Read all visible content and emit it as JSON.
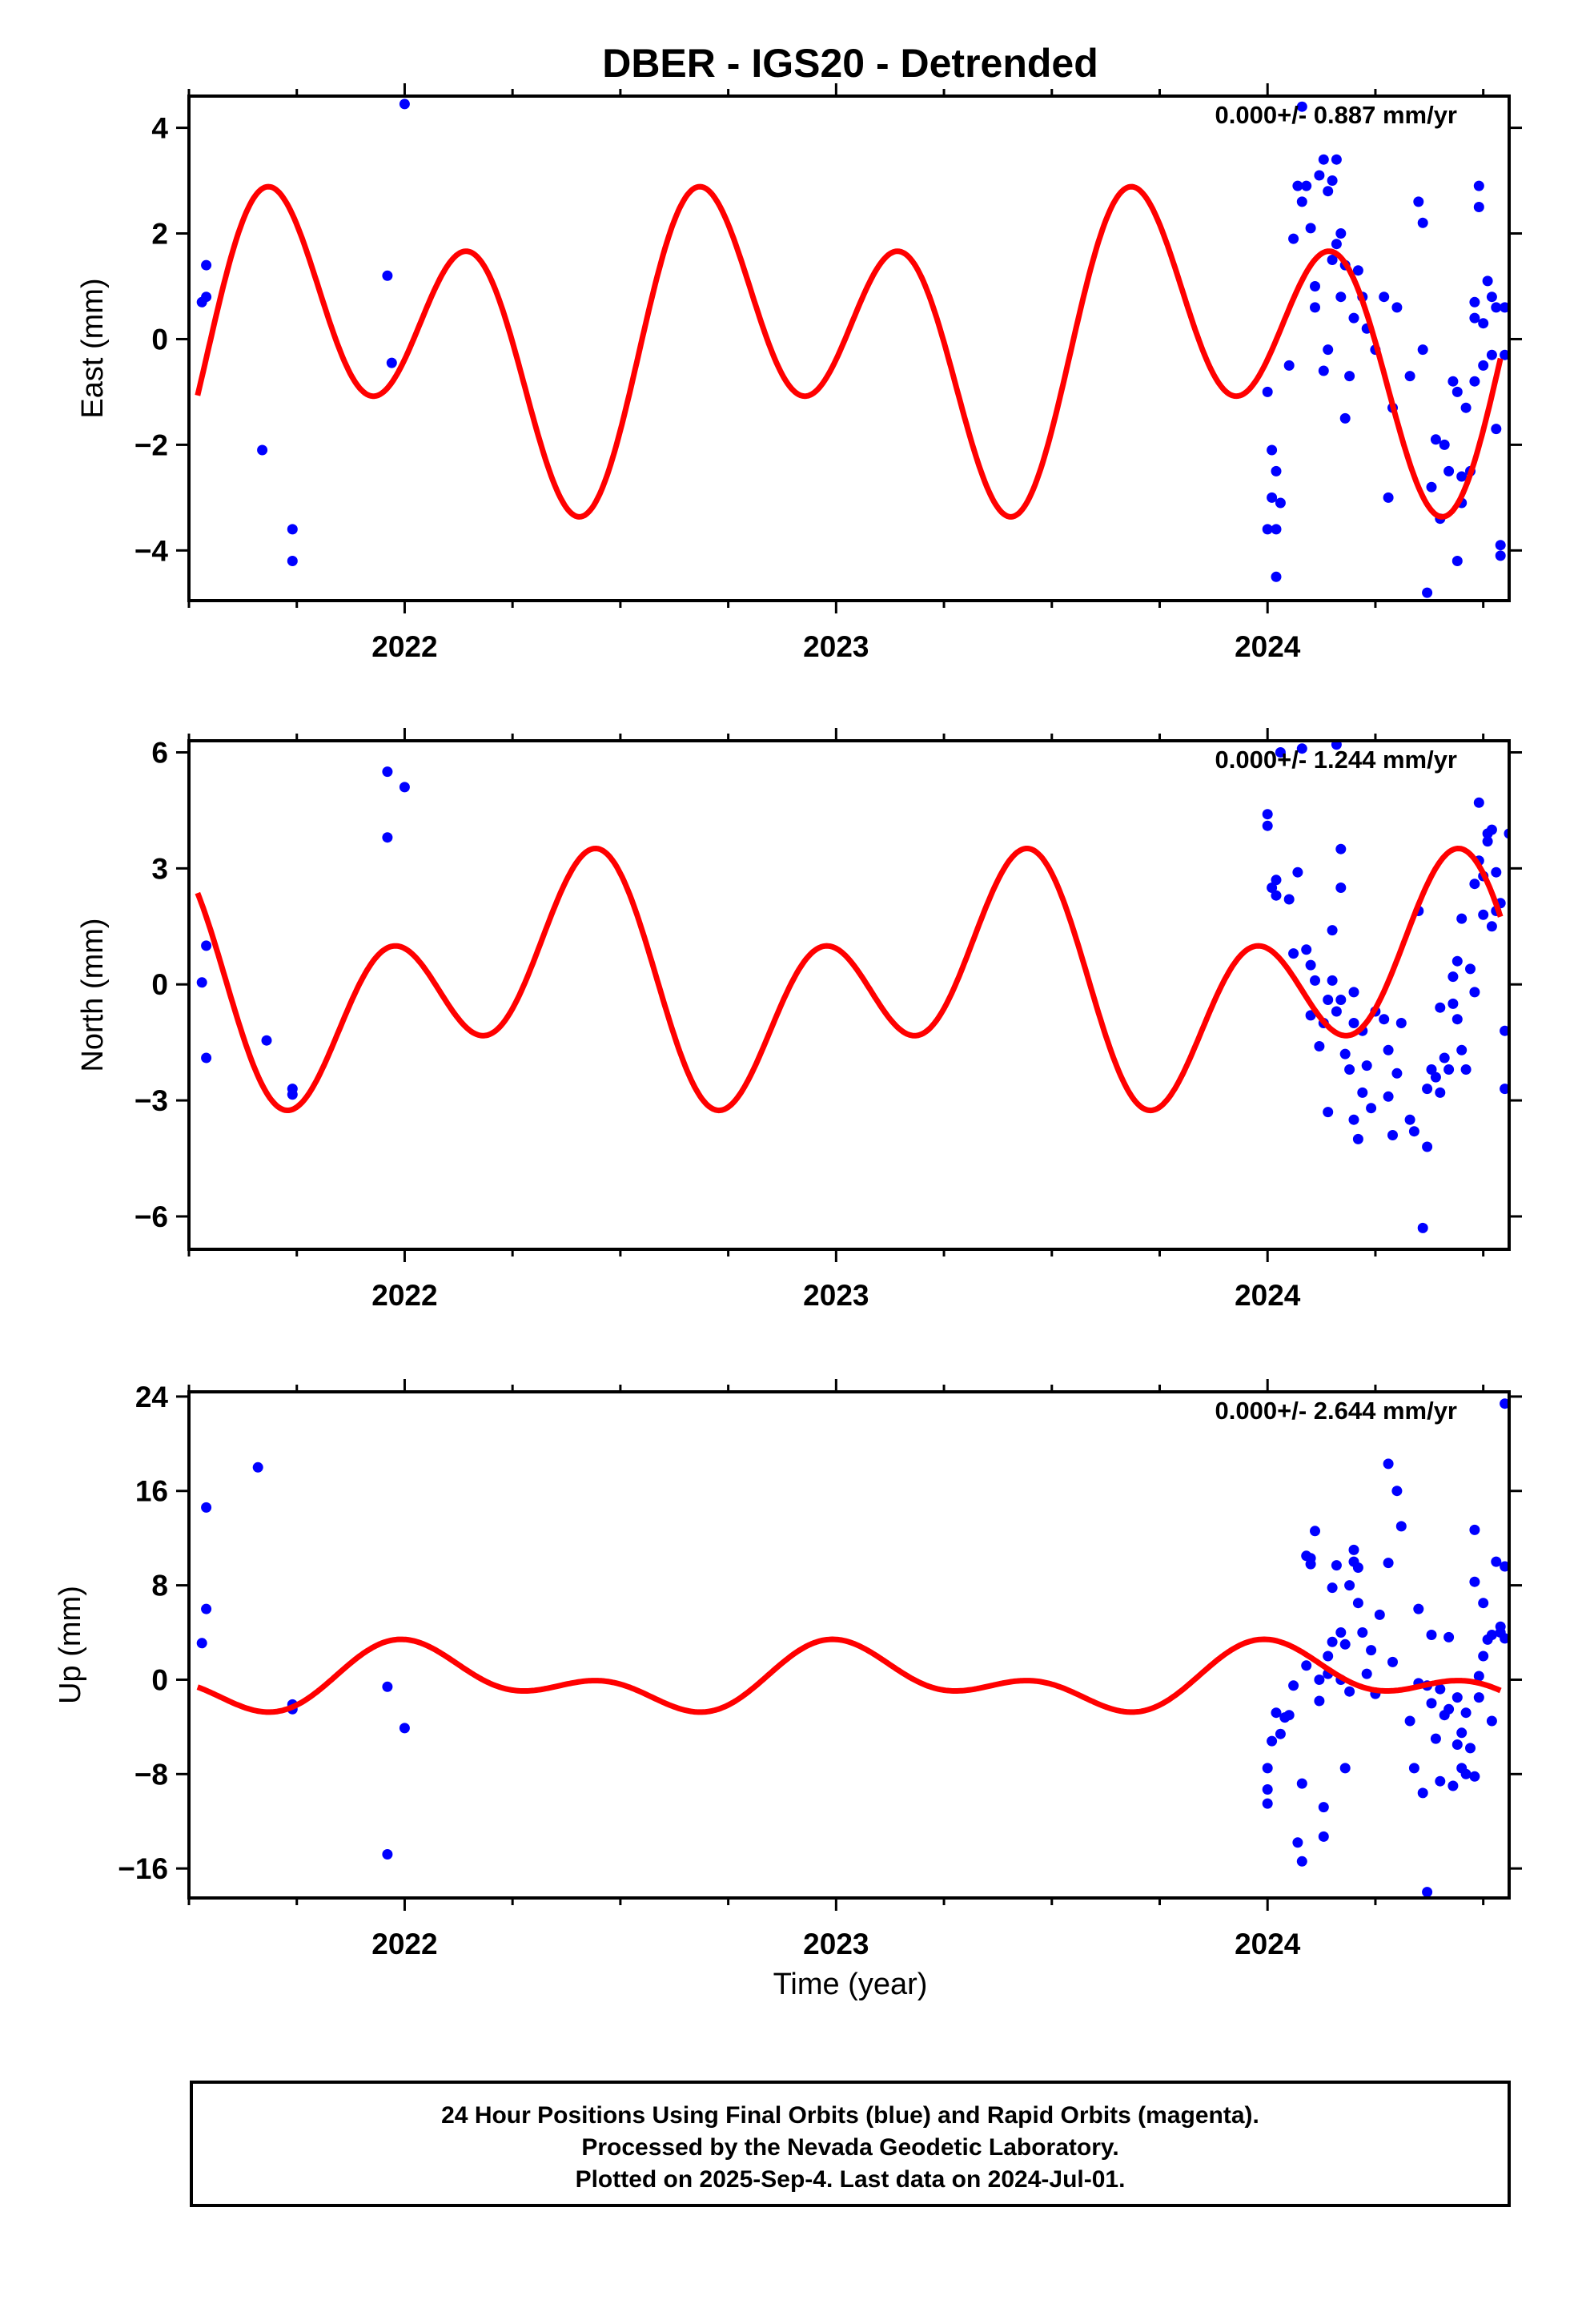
{
  "title": "DBER - IGS20 - Detrended",
  "xlabel": "Time (year)",
  "colors": {
    "points": "#0000ff",
    "fit": "#ff0000",
    "frame": "#000000"
  },
  "footer": {
    "line1": "24 Hour Positions Using Final Orbits (blue) and Rapid Orbits (magenta).",
    "line2": "Processed by the Nevada Geodetic Laboratory.",
    "line3": "Plotted on 2025-Sep-4. Last data on 2024-Jul-01."
  },
  "chart_data": [
    {
      "type": "scatter",
      "ylabel": "East (mm)",
      "rate_label": "0.000+/- 0.887 mm/yr",
      "xlim": [
        2021.5,
        2024.56
      ],
      "ylim": [
        -4.95,
        4.6
      ],
      "xticks": [
        "2022",
        "2023",
        "2024"
      ],
      "yticks": [
        "4",
        "2",
        "0",
        "−2",
        "−4"
      ],
      "ytick_values": [
        4,
        2,
        0,
        -2,
        -4
      ],
      "fit": {
        "a1": 1.3,
        "p1": 2.6,
        "a2": 2.2,
        "p2": -0.5
      },
      "points": [
        [
          2021.53,
          0.7
        ],
        [
          2021.54,
          1.4
        ],
        [
          2021.54,
          0.8
        ],
        [
          2021.67,
          -2.1
        ],
        [
          2021.74,
          -3.6
        ],
        [
          2021.74,
          -4.2
        ],
        [
          2021.96,
          1.2
        ],
        [
          2021.97,
          -0.45
        ],
        [
          2022.0,
          4.45
        ],
        [
          2024.0,
          -1.0
        ],
        [
          2024.0,
          -3.6
        ],
        [
          2024.01,
          -2.1
        ],
        [
          2024.01,
          -3.0
        ],
        [
          2024.02,
          -4.5
        ],
        [
          2024.02,
          -3.6
        ],
        [
          2024.03,
          -3.1
        ],
        [
          2024.02,
          -2.5
        ],
        [
          2024.05,
          -0.5
        ],
        [
          2024.06,
          1.9
        ],
        [
          2024.07,
          2.9
        ],
        [
          2024.08,
          2.6
        ],
        [
          2024.08,
          4.4
        ],
        [
          2024.09,
          2.9
        ],
        [
          2024.1,
          2.1
        ],
        [
          2024.11,
          1.0
        ],
        [
          2024.11,
          0.6
        ],
        [
          2024.12,
          3.1
        ],
        [
          2024.13,
          3.4
        ],
        [
          2024.13,
          -0.6
        ],
        [
          2024.14,
          -0.2
        ],
        [
          2024.14,
          2.8
        ],
        [
          2024.15,
          3.0
        ],
        [
          2024.15,
          1.5
        ],
        [
          2024.16,
          3.4
        ],
        [
          2024.16,
          1.8
        ],
        [
          2024.17,
          2.0
        ],
        [
          2024.17,
          0.8
        ],
        [
          2024.18,
          -1.5
        ],
        [
          2024.18,
          1.4
        ],
        [
          2024.19,
          -0.7
        ],
        [
          2024.2,
          0.4
        ],
        [
          2024.21,
          1.3
        ],
        [
          2024.22,
          0.8
        ],
        [
          2024.23,
          0.2
        ],
        [
          2024.25,
          -0.2
        ],
        [
          2024.27,
          0.8
        ],
        [
          2024.28,
          -3.0
        ],
        [
          2024.29,
          -1.3
        ],
        [
          2024.3,
          0.6
        ],
        [
          2024.33,
          -0.7
        ],
        [
          2024.35,
          2.6
        ],
        [
          2024.36,
          2.2
        ],
        [
          2024.36,
          -0.2
        ],
        [
          2024.37,
          -4.8
        ],
        [
          2024.38,
          -2.8
        ],
        [
          2024.39,
          -1.9
        ],
        [
          2024.4,
          -3.4
        ],
        [
          2024.41,
          -2.0
        ],
        [
          2024.42,
          -2.5
        ],
        [
          2024.43,
          -0.8
        ],
        [
          2024.44,
          -4.2
        ],
        [
          2024.44,
          -1.0
        ],
        [
          2024.45,
          -3.1
        ],
        [
          2024.45,
          -2.6
        ],
        [
          2024.46,
          -1.3
        ],
        [
          2024.47,
          -2.5
        ],
        [
          2024.48,
          0.7
        ],
        [
          2024.48,
          -0.8
        ],
        [
          2024.48,
          0.4
        ],
        [
          2024.49,
          2.5
        ],
        [
          2024.49,
          2.9
        ],
        [
          2024.5,
          -0.5
        ],
        [
          2024.5,
          0.3
        ],
        [
          2024.51,
          1.1
        ],
        [
          2024.52,
          0.8
        ],
        [
          2024.52,
          -0.3
        ],
        [
          2024.53,
          -1.7
        ],
        [
          2024.53,
          0.6
        ],
        [
          2024.54,
          -3.9
        ],
        [
          2024.54,
          -4.1
        ],
        [
          2024.55,
          0.6
        ],
        [
          2024.55,
          -0.3
        ]
      ]
    },
    {
      "type": "scatter",
      "ylabel": "North (mm)",
      "rate_label": "0.000+/- 1.244 mm/yr",
      "xlim": [
        2021.5,
        2024.56
      ],
      "ylim": [
        -6.85,
        6.3
      ],
      "xticks": [
        "2022",
        "2023",
        "2024"
      ],
      "yticks": [
        "6",
        "3",
        "0",
        "−3",
        "−6"
      ],
      "ytick_values": [
        6,
        3,
        0,
        -3,
        -6
      ],
      "fit": {
        "a1": 1.6,
        "p1": -0.65,
        "a2": 2.2,
        "p2": 2.1
      },
      "points": [
        [
          2021.53,
          0.05
        ],
        [
          2021.54,
          1.0
        ],
        [
          2021.54,
          -1.9
        ],
        [
          2021.68,
          -1.45
        ],
        [
          2021.74,
          -2.7
        ],
        [
          2021.74,
          -2.85
        ],
        [
          2021.96,
          5.5
        ],
        [
          2021.96,
          3.8
        ],
        [
          2022.0,
          5.1
        ],
        [
          2024.0,
          4.4
        ],
        [
          2024.0,
          4.1
        ],
        [
          2024.01,
          2.5
        ],
        [
          2024.02,
          2.3
        ],
        [
          2024.02,
          2.7
        ],
        [
          2024.03,
          6.0
        ],
        [
          2024.05,
          2.2
        ],
        [
          2024.06,
          0.8
        ],
        [
          2024.07,
          2.9
        ],
        [
          2024.08,
          6.1
        ],
        [
          2024.09,
          0.9
        ],
        [
          2024.1,
          0.5
        ],
        [
          2024.1,
          -0.8
        ],
        [
          2024.11,
          0.1
        ],
        [
          2024.12,
          -1.6
        ],
        [
          2024.13,
          -1.0
        ],
        [
          2024.14,
          -0.4
        ],
        [
          2024.14,
          -3.3
        ],
        [
          2024.15,
          1.4
        ],
        [
          2024.15,
          0.1
        ],
        [
          2024.16,
          -0.7
        ],
        [
          2024.16,
          6.2
        ],
        [
          2024.17,
          -0.4
        ],
        [
          2024.17,
          2.5
        ],
        [
          2024.17,
          3.5
        ],
        [
          2024.18,
          -1.8
        ],
        [
          2024.19,
          -2.2
        ],
        [
          2024.2,
          -3.5
        ],
        [
          2024.2,
          -1.0
        ],
        [
          2024.2,
          -0.2
        ],
        [
          2024.21,
          -4.0
        ],
        [
          2024.22,
          -2.8
        ],
        [
          2024.22,
          -1.2
        ],
        [
          2024.23,
          -2.1
        ],
        [
          2024.24,
          -3.2
        ],
        [
          2024.25,
          -0.7
        ],
        [
          2024.27,
          -0.9
        ],
        [
          2024.28,
          -2.9
        ],
        [
          2024.28,
          -1.7
        ],
        [
          2024.29,
          -3.9
        ],
        [
          2024.3,
          -2.3
        ],
        [
          2024.31,
          -1.0
        ],
        [
          2024.33,
          -3.5
        ],
        [
          2024.34,
          -3.8
        ],
        [
          2024.35,
          1.9
        ],
        [
          2024.36,
          -6.3
        ],
        [
          2024.37,
          -4.2
        ],
        [
          2024.37,
          -2.7
        ],
        [
          2024.38,
          -2.2
        ],
        [
          2024.39,
          -2.4
        ],
        [
          2024.4,
          -0.6
        ],
        [
          2024.4,
          -2.8
        ],
        [
          2024.41,
          -1.9
        ],
        [
          2024.42,
          -2.2
        ],
        [
          2024.43,
          -0.5
        ],
        [
          2024.43,
          0.2
        ],
        [
          2024.44,
          -0.9
        ],
        [
          2024.44,
          0.6
        ],
        [
          2024.45,
          -1.7
        ],
        [
          2024.45,
          1.7
        ],
        [
          2024.46,
          -2.2
        ],
        [
          2024.47,
          0.4
        ],
        [
          2024.48,
          -0.2
        ],
        [
          2024.48,
          2.6
        ],
        [
          2024.49,
          4.7
        ],
        [
          2024.49,
          3.2
        ],
        [
          2024.5,
          1.8
        ],
        [
          2024.5,
          2.8
        ],
        [
          2024.51,
          3.9
        ],
        [
          2024.51,
          3.7
        ],
        [
          2024.52,
          1.5
        ],
        [
          2024.52,
          4.0
        ],
        [
          2024.53,
          2.9
        ],
        [
          2024.53,
          1.9
        ],
        [
          2024.54,
          2.1
        ],
        [
          2024.55,
          -1.2
        ],
        [
          2024.55,
          -2.7
        ],
        [
          2024.56,
          3.9
        ]
      ]
    },
    {
      "type": "scatter",
      "ylabel": "Up (mm)",
      "rate_label": "0.000+/- 2.644 mm/yr",
      "xlim": [
        2021.5,
        2024.56
      ],
      "ylim": [
        -18.5,
        24.4
      ],
      "xticks": [
        "2022",
        "2023",
        "2024"
      ],
      "yticks": [
        "24",
        "16",
        "8",
        "0",
        "−8",
        "−16"
      ],
      "ytick_values": [
        24,
        16,
        8,
        0,
        -8,
        -16
      ],
      "fit": {
        "a1": 2.0,
        "p1": 1.25,
        "a2": 1.6,
        "p2": 1.9
      },
      "points": [
        [
          2021.53,
          3.1
        ],
        [
          2021.54,
          14.6
        ],
        [
          2021.54,
          6.0
        ],
        [
          2021.66,
          18.0
        ],
        [
          2021.74,
          -2.1
        ],
        [
          2021.74,
          -2.5
        ],
        [
          2021.96,
          -0.6
        ],
        [
          2021.96,
          -14.8
        ],
        [
          2022.0,
          -4.1
        ],
        [
          2024.0,
          -7.5
        ],
        [
          2024.0,
          -10.5
        ],
        [
          2024.0,
          -9.3
        ],
        [
          2024.01,
          -5.2
        ],
        [
          2024.02,
          -2.8
        ],
        [
          2024.03,
          -4.6
        ],
        [
          2024.04,
          -3.2
        ],
        [
          2024.05,
          -3.0
        ],
        [
          2024.06,
          -0.5
        ],
        [
          2024.07,
          -13.8
        ],
        [
          2024.08,
          -15.4
        ],
        [
          2024.08,
          -8.8
        ],
        [
          2024.09,
          10.5
        ],
        [
          2024.09,
          1.2
        ],
        [
          2024.1,
          9.8
        ],
        [
          2024.1,
          10.3
        ],
        [
          2024.11,
          12.6
        ],
        [
          2024.12,
          -1.8
        ],
        [
          2024.12,
          0.0
        ],
        [
          2024.13,
          -13.3
        ],
        [
          2024.13,
          -10.8
        ],
        [
          2024.14,
          0.5
        ],
        [
          2024.14,
          2.0
        ],
        [
          2024.15,
          3.2
        ],
        [
          2024.15,
          7.8
        ],
        [
          2024.16,
          9.7
        ],
        [
          2024.17,
          0.0
        ],
        [
          2024.17,
          4.0
        ],
        [
          2024.18,
          3.0
        ],
        [
          2024.18,
          -7.5
        ],
        [
          2024.19,
          -1.0
        ],
        [
          2024.19,
          8.0
        ],
        [
          2024.2,
          10.0
        ],
        [
          2024.2,
          11.0
        ],
        [
          2024.21,
          9.5
        ],
        [
          2024.21,
          6.5
        ],
        [
          2024.22,
          4.0
        ],
        [
          2024.23,
          0.5
        ],
        [
          2024.24,
          2.5
        ],
        [
          2024.25,
          -1.2
        ],
        [
          2024.26,
          5.5
        ],
        [
          2024.28,
          18.3
        ],
        [
          2024.28,
          9.9
        ],
        [
          2024.29,
          1.5
        ],
        [
          2024.3,
          16.0
        ],
        [
          2024.31,
          13.0
        ],
        [
          2024.33,
          -3.5
        ],
        [
          2024.34,
          -7.5
        ],
        [
          2024.35,
          6.0
        ],
        [
          2024.35,
          -0.3
        ],
        [
          2024.36,
          -9.6
        ],
        [
          2024.37,
          -18.0
        ],
        [
          2024.37,
          -0.5
        ],
        [
          2024.38,
          3.8
        ],
        [
          2024.38,
          -2.0
        ],
        [
          2024.39,
          -5.0
        ],
        [
          2024.4,
          -0.8
        ],
        [
          2024.4,
          -8.6
        ],
        [
          2024.41,
          -3.0
        ],
        [
          2024.42,
          3.6
        ],
        [
          2024.42,
          -2.5
        ],
        [
          2024.43,
          -9.0
        ],
        [
          2024.44,
          -5.5
        ],
        [
          2024.44,
          -1.5
        ],
        [
          2024.45,
          -7.5
        ],
        [
          2024.45,
          -4.5
        ],
        [
          2024.46,
          -8.0
        ],
        [
          2024.46,
          -2.8
        ],
        [
          2024.47,
          -5.8
        ],
        [
          2024.48,
          12.7
        ],
        [
          2024.48,
          8.3
        ],
        [
          2024.48,
          -8.2
        ],
        [
          2024.49,
          -1.5
        ],
        [
          2024.49,
          0.3
        ],
        [
          2024.5,
          6.5
        ],
        [
          2024.5,
          2.0
        ],
        [
          2024.51,
          3.4
        ],
        [
          2024.52,
          -3.5
        ],
        [
          2024.52,
          3.8
        ],
        [
          2024.53,
          10.0
        ],
        [
          2024.54,
          4.5
        ],
        [
          2024.54,
          4.0
        ],
        [
          2024.55,
          3.5
        ],
        [
          2024.55,
          9.6
        ],
        [
          2024.55,
          23.4
        ]
      ]
    }
  ]
}
